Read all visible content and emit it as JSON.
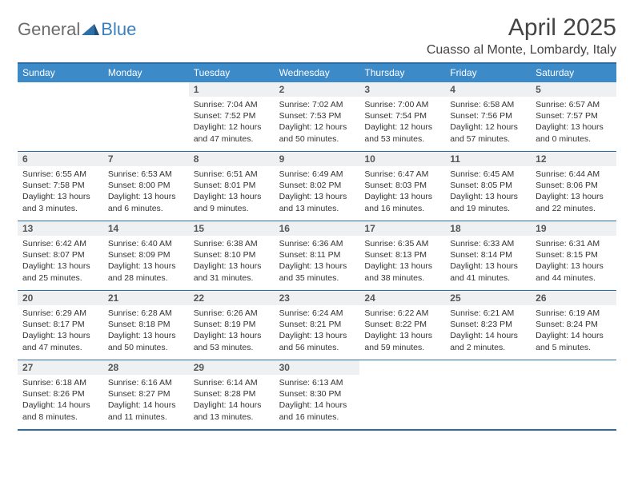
{
  "brand": {
    "name1": "General",
    "name2": "Blue"
  },
  "title": "April 2025",
  "location": "Cuasso al Monte, Lombardy, Italy",
  "colors": {
    "header_bg": "#3d8ac9",
    "header_text": "#ffffff",
    "border": "#2b6ca3",
    "daynum_bg": "#eef0f2",
    "text": "#333333",
    "brand_gray": "#6b6b6b",
    "brand_blue": "#3a7fbf",
    "background": "#ffffff"
  },
  "typography": {
    "title_fontsize": 30,
    "location_fontsize": 16,
    "dayheader_fontsize": 12,
    "daynum_fontsize": 12,
    "body_fontsize": 10.5
  },
  "day_names": [
    "Sunday",
    "Monday",
    "Tuesday",
    "Wednesday",
    "Thursday",
    "Friday",
    "Saturday"
  ],
  "weeks": [
    [
      {
        "day": "",
        "sunrise": "",
        "sunset": "",
        "daylight": ""
      },
      {
        "day": "",
        "sunrise": "",
        "sunset": "",
        "daylight": ""
      },
      {
        "day": "1",
        "sunrise": "Sunrise: 7:04 AM",
        "sunset": "Sunset: 7:52 PM",
        "daylight": "Daylight: 12 hours and 47 minutes."
      },
      {
        "day": "2",
        "sunrise": "Sunrise: 7:02 AM",
        "sunset": "Sunset: 7:53 PM",
        "daylight": "Daylight: 12 hours and 50 minutes."
      },
      {
        "day": "3",
        "sunrise": "Sunrise: 7:00 AM",
        "sunset": "Sunset: 7:54 PM",
        "daylight": "Daylight: 12 hours and 53 minutes."
      },
      {
        "day": "4",
        "sunrise": "Sunrise: 6:58 AM",
        "sunset": "Sunset: 7:56 PM",
        "daylight": "Daylight: 12 hours and 57 minutes."
      },
      {
        "day": "5",
        "sunrise": "Sunrise: 6:57 AM",
        "sunset": "Sunset: 7:57 PM",
        "daylight": "Daylight: 13 hours and 0 minutes."
      }
    ],
    [
      {
        "day": "6",
        "sunrise": "Sunrise: 6:55 AM",
        "sunset": "Sunset: 7:58 PM",
        "daylight": "Daylight: 13 hours and 3 minutes."
      },
      {
        "day": "7",
        "sunrise": "Sunrise: 6:53 AM",
        "sunset": "Sunset: 8:00 PM",
        "daylight": "Daylight: 13 hours and 6 minutes."
      },
      {
        "day": "8",
        "sunrise": "Sunrise: 6:51 AM",
        "sunset": "Sunset: 8:01 PM",
        "daylight": "Daylight: 13 hours and 9 minutes."
      },
      {
        "day": "9",
        "sunrise": "Sunrise: 6:49 AM",
        "sunset": "Sunset: 8:02 PM",
        "daylight": "Daylight: 13 hours and 13 minutes."
      },
      {
        "day": "10",
        "sunrise": "Sunrise: 6:47 AM",
        "sunset": "Sunset: 8:03 PM",
        "daylight": "Daylight: 13 hours and 16 minutes."
      },
      {
        "day": "11",
        "sunrise": "Sunrise: 6:45 AM",
        "sunset": "Sunset: 8:05 PM",
        "daylight": "Daylight: 13 hours and 19 minutes."
      },
      {
        "day": "12",
        "sunrise": "Sunrise: 6:44 AM",
        "sunset": "Sunset: 8:06 PM",
        "daylight": "Daylight: 13 hours and 22 minutes."
      }
    ],
    [
      {
        "day": "13",
        "sunrise": "Sunrise: 6:42 AM",
        "sunset": "Sunset: 8:07 PM",
        "daylight": "Daylight: 13 hours and 25 minutes."
      },
      {
        "day": "14",
        "sunrise": "Sunrise: 6:40 AM",
        "sunset": "Sunset: 8:09 PM",
        "daylight": "Daylight: 13 hours and 28 minutes."
      },
      {
        "day": "15",
        "sunrise": "Sunrise: 6:38 AM",
        "sunset": "Sunset: 8:10 PM",
        "daylight": "Daylight: 13 hours and 31 minutes."
      },
      {
        "day": "16",
        "sunrise": "Sunrise: 6:36 AM",
        "sunset": "Sunset: 8:11 PM",
        "daylight": "Daylight: 13 hours and 35 minutes."
      },
      {
        "day": "17",
        "sunrise": "Sunrise: 6:35 AM",
        "sunset": "Sunset: 8:13 PM",
        "daylight": "Daylight: 13 hours and 38 minutes."
      },
      {
        "day": "18",
        "sunrise": "Sunrise: 6:33 AM",
        "sunset": "Sunset: 8:14 PM",
        "daylight": "Daylight: 13 hours and 41 minutes."
      },
      {
        "day": "19",
        "sunrise": "Sunrise: 6:31 AM",
        "sunset": "Sunset: 8:15 PM",
        "daylight": "Daylight: 13 hours and 44 minutes."
      }
    ],
    [
      {
        "day": "20",
        "sunrise": "Sunrise: 6:29 AM",
        "sunset": "Sunset: 8:17 PM",
        "daylight": "Daylight: 13 hours and 47 minutes."
      },
      {
        "day": "21",
        "sunrise": "Sunrise: 6:28 AM",
        "sunset": "Sunset: 8:18 PM",
        "daylight": "Daylight: 13 hours and 50 minutes."
      },
      {
        "day": "22",
        "sunrise": "Sunrise: 6:26 AM",
        "sunset": "Sunset: 8:19 PM",
        "daylight": "Daylight: 13 hours and 53 minutes."
      },
      {
        "day": "23",
        "sunrise": "Sunrise: 6:24 AM",
        "sunset": "Sunset: 8:21 PM",
        "daylight": "Daylight: 13 hours and 56 minutes."
      },
      {
        "day": "24",
        "sunrise": "Sunrise: 6:22 AM",
        "sunset": "Sunset: 8:22 PM",
        "daylight": "Daylight: 13 hours and 59 minutes."
      },
      {
        "day": "25",
        "sunrise": "Sunrise: 6:21 AM",
        "sunset": "Sunset: 8:23 PM",
        "daylight": "Daylight: 14 hours and 2 minutes."
      },
      {
        "day": "26",
        "sunrise": "Sunrise: 6:19 AM",
        "sunset": "Sunset: 8:24 PM",
        "daylight": "Daylight: 14 hours and 5 minutes."
      }
    ],
    [
      {
        "day": "27",
        "sunrise": "Sunrise: 6:18 AM",
        "sunset": "Sunset: 8:26 PM",
        "daylight": "Daylight: 14 hours and 8 minutes."
      },
      {
        "day": "28",
        "sunrise": "Sunrise: 6:16 AM",
        "sunset": "Sunset: 8:27 PM",
        "daylight": "Daylight: 14 hours and 11 minutes."
      },
      {
        "day": "29",
        "sunrise": "Sunrise: 6:14 AM",
        "sunset": "Sunset: 8:28 PM",
        "daylight": "Daylight: 14 hours and 13 minutes."
      },
      {
        "day": "30",
        "sunrise": "Sunrise: 6:13 AM",
        "sunset": "Sunset: 8:30 PM",
        "daylight": "Daylight: 14 hours and 16 minutes."
      },
      {
        "day": "",
        "sunrise": "",
        "sunset": "",
        "daylight": ""
      },
      {
        "day": "",
        "sunrise": "",
        "sunset": "",
        "daylight": ""
      },
      {
        "day": "",
        "sunrise": "",
        "sunset": "",
        "daylight": ""
      }
    ]
  ]
}
